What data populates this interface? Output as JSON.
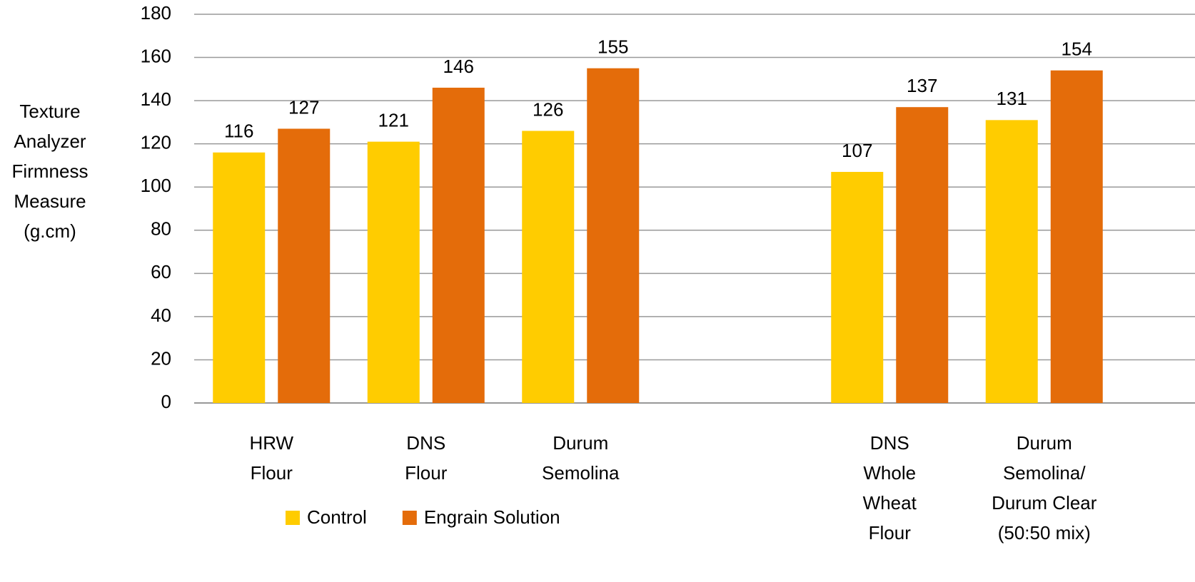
{
  "chart_data": {
    "type": "bar",
    "y_label": "Texture\nAnalyzer\nFirmness\nMeasure\n(g.cm)",
    "categories": [
      "HRW\nFlour",
      "DNS\nFlour",
      "Durum\nSemolina",
      null,
      "DNS\nWhole\nWheat\nFlour",
      "Durum\nSemolina/\nDurum Clear\n(50:50 mix)"
    ],
    "series": [
      {
        "name": "Control",
        "color": "#FFCC00",
        "values": [
          116,
          121,
          126,
          null,
          107,
          131
        ]
      },
      {
        "name": "Engrain Solution",
        "color": "#E46C0A",
        "values": [
          127,
          146,
          155,
          null,
          137,
          154
        ]
      }
    ],
    "ylim": [
      0,
      180
    ],
    "yticks": [
      0,
      20,
      40,
      60,
      80,
      100,
      120,
      140,
      160,
      180
    ],
    "grid": true,
    "legend": "bottom"
  }
}
